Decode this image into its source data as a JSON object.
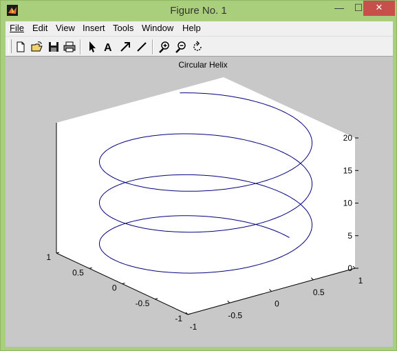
{
  "window": {
    "title": "Figure No. 1",
    "minimize": "—",
    "maximize": "☐",
    "close": "✕"
  },
  "menu": [
    {
      "label": "File"
    },
    {
      "label": "Edit"
    },
    {
      "label": "View"
    },
    {
      "label": "Insert"
    },
    {
      "label": "Tools"
    },
    {
      "label": "Window"
    },
    {
      "label": "Help"
    }
  ],
  "toolbar": {
    "icons": [
      "new-figure-icon",
      "open-file-icon",
      "save-icon",
      "print-icon",
      "edit-plot-arrow-icon",
      "insert-text-icon",
      "insert-arrow-icon",
      "insert-line-icon",
      "zoom-in-icon",
      "zoom-out-icon",
      "rotate-3d-icon"
    ]
  },
  "chart_data": {
    "type": "line",
    "title": "Circular Helix",
    "series": [
      {
        "equation": "x = sin(t), y = cos(t), z = t",
        "t_range": [
          0,
          20
        ]
      }
    ],
    "xlim": [
      -1,
      1
    ],
    "ylim": [
      -1,
      1
    ],
    "zlim": [
      0,
      20
    ],
    "x_ticks": [
      "-1",
      "-0.5",
      "0",
      "0.5",
      "1"
    ],
    "y_ticks": [
      "-1",
      "-0.5",
      "0",
      "0.5",
      "1"
    ],
    "z_ticks": [
      "0",
      "5",
      "10",
      "15",
      "20"
    ],
    "line_color": "#00007f",
    "axes_face_color": "#ffffff",
    "figure_color": "#c8c8c8"
  }
}
